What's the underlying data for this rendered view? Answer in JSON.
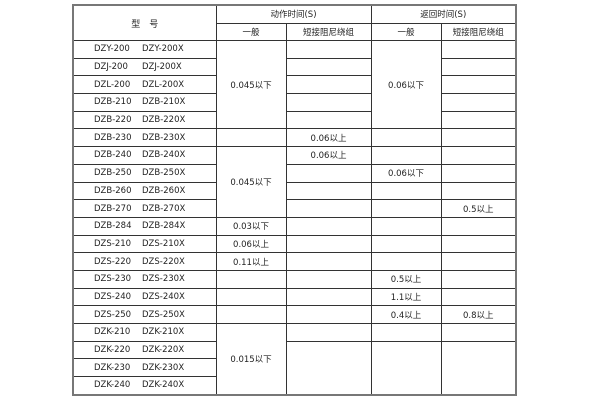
{
  "header": {
    "model": "型　号",
    "action_time": "动作时间(S)",
    "return_time": "返回时间(S)",
    "general": "一般",
    "short_damping": "短接阻尼绕组"
  },
  "rows": [
    {
      "model_a": "DZY-200",
      "model_b": "DZY-200X",
      "action_general": "0.045以下",
      "action_short": "",
      "return_general": "0.06以下",
      "return_short": ""
    },
    {
      "model_a": "DZJ-200",
      "model_b": "DZJ-200X",
      "action_short": "",
      "return_short": ""
    },
    {
      "model_a": "DZL-200",
      "model_b": "DZL-200X",
      "action_short": "",
      "return_short": ""
    },
    {
      "model_a": "DZB-210",
      "model_b": "DZB-210X",
      "action_short": "",
      "return_short": ""
    },
    {
      "model_a": "DZB-220",
      "model_b": "DZB-220X",
      "action_short": "",
      "return_short": ""
    },
    {
      "model_a": "DZB-230",
      "model_b": "DZB-230X",
      "action_general": "",
      "action_short": "0.06以上",
      "return_general": "",
      "return_short": ""
    },
    {
      "model_a": "DZB-240",
      "model_b": "DZB-240X",
      "action_general": "0.045以下",
      "action_short": "0.06以上",
      "return_general": "",
      "return_short": ""
    },
    {
      "model_a": "DZB-250",
      "model_b": "DZB-250X",
      "action_short": "",
      "return_general": "0.06以下",
      "return_short": ""
    },
    {
      "model_a": "DZB-260",
      "model_b": "DZB-260X",
      "action_short": "",
      "return_general": "",
      "return_short": ""
    },
    {
      "model_a": "DZB-270",
      "model_b": "DZB-270X",
      "action_short": "",
      "return_general": "",
      "return_short": "0.5以上"
    },
    {
      "model_a": "DZB-284",
      "model_b": "DZB-284X",
      "action_general": "0.03以下",
      "action_short": "",
      "return_general": "",
      "return_short": ""
    },
    {
      "model_a": "DZS-210",
      "model_b": "DZS-210X",
      "action_general": "0.06以上",
      "action_short": "",
      "return_general": "",
      "return_short": ""
    },
    {
      "model_a": "DZS-220",
      "model_b": "DZS-220X",
      "action_general": "0.11以上",
      "action_short": "",
      "return_general": "",
      "return_short": ""
    },
    {
      "model_a": "DZS-230",
      "model_b": "DZS-230X",
      "action_general": "",
      "action_short": "",
      "return_general": "0.5以上",
      "return_short": ""
    },
    {
      "model_a": "DZS-240",
      "model_b": "DZS-240X",
      "action_general": "",
      "action_short": "",
      "return_general": "1.1以上",
      "return_short": ""
    },
    {
      "model_a": "DZS-250",
      "model_b": "DZS-250X",
      "action_general": "",
      "action_short": "",
      "return_general": "0.4以上",
      "return_short": "0.8以上"
    },
    {
      "model_a": "DZK-210",
      "model_b": "DZK-210X",
      "action_general": "0.015以下",
      "action_short": "",
      "return_general": "",
      "return_short": ""
    },
    {
      "model_a": "DZK-220",
      "model_b": "DZK-220X",
      "action_short": "",
      "return_general": "",
      "return_short": ""
    },
    {
      "model_a": "DZK-230",
      "model_b": "DZK-230X"
    },
    {
      "model_a": "DZK-240",
      "model_b": "DZK-240X"
    }
  ]
}
